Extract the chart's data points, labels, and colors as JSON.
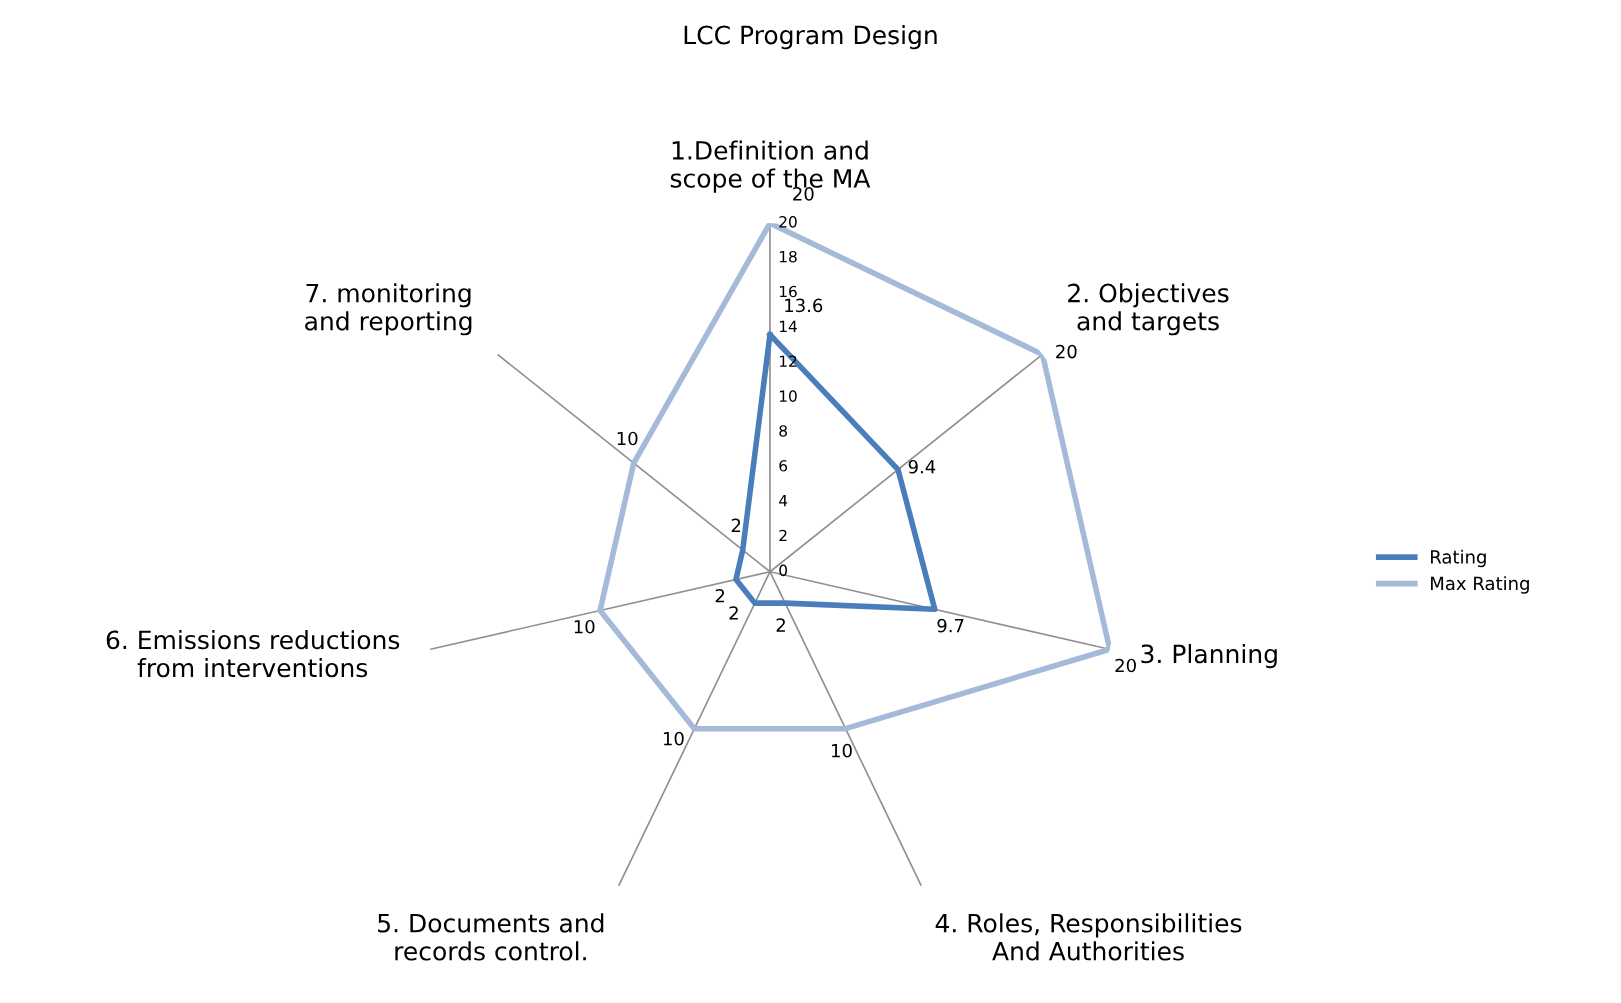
{
  "chart_data": {
    "type": "radar",
    "title": "LCC Program Design",
    "categories": [
      "1.Definition and scope of the MA",
      "2. Objectives and targets",
      "3. Planning",
      "4. Roles, Responsibilities And Authorities",
      "5. Documents and records control.",
      "6. Emissions reductions from interventions",
      "7. monitoring and reporting"
    ],
    "series": [
      {
        "name": "Rating",
        "color": "#4a7ebb",
        "values": [
          13.6,
          9.4,
          9.7,
          2,
          2,
          2,
          2
        ]
      },
      {
        "name": "Max Rating",
        "color": "#a5b9d9",
        "values": [
          20,
          20,
          20,
          10,
          10,
          10,
          10
        ]
      }
    ],
    "ylim": [
      0,
      20
    ],
    "yticks": [
      0,
      2,
      4,
      6,
      8,
      10,
      12,
      14,
      16,
      18,
      20
    ],
    "grid": "x",
    "legend": "right",
    "data_labels": true,
    "marker": "none",
    "line_style": "solid"
  }
}
